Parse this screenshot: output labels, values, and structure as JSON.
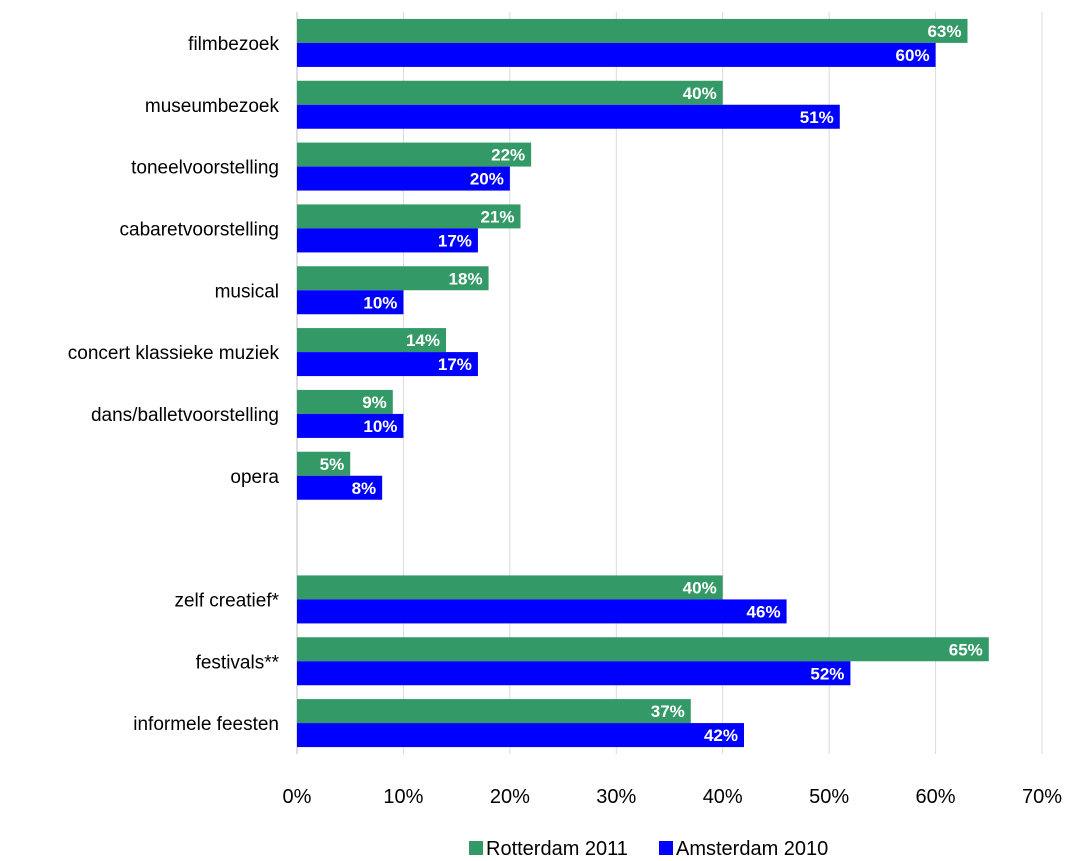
{
  "chart_data": {
    "type": "bar",
    "orientation": "horizontal",
    "title": "",
    "xlabel": "",
    "ylabel": "",
    "xlim": [
      0,
      70
    ],
    "x_tick_labels": [
      "0%",
      "10%",
      "20%",
      "30%",
      "40%",
      "50%",
      "60%",
      "70%"
    ],
    "x_ticks": [
      0,
      10,
      20,
      30,
      40,
      50,
      60,
      70
    ],
    "grid": "vertical",
    "legend_position": "bottom",
    "categories": [
      "filmbezoek",
      "museumbezoek",
      "toneelvoorstelling",
      "cabaretvoorstelling",
      "musical",
      "concert klassieke muziek",
      "dans/balletvoorstelling",
      "opera",
      "",
      "zelf creatief*",
      "festivals**",
      "informele feesten"
    ],
    "series": [
      {
        "name": "Rotterdam 2011",
        "color": "#339966",
        "values": [
          63,
          40,
          22,
          21,
          18,
          14,
          9,
          5,
          null,
          40,
          65,
          37
        ],
        "labels": [
          "63%",
          "40%",
          "22%",
          "21%",
          "18%",
          "14%",
          "9%",
          "5%",
          "",
          "40%",
          "65%",
          "37%"
        ]
      },
      {
        "name": "Amsterdam 2010",
        "color": "#0000ff",
        "values": [
          60,
          51,
          20,
          17,
          10,
          17,
          10,
          8,
          null,
          46,
          52,
          42
        ],
        "labels": [
          "60%",
          "51%",
          "20%",
          "17%",
          "10%",
          "17%",
          "10%",
          "8%",
          "",
          "46%",
          "52%",
          "42%"
        ]
      }
    ]
  }
}
